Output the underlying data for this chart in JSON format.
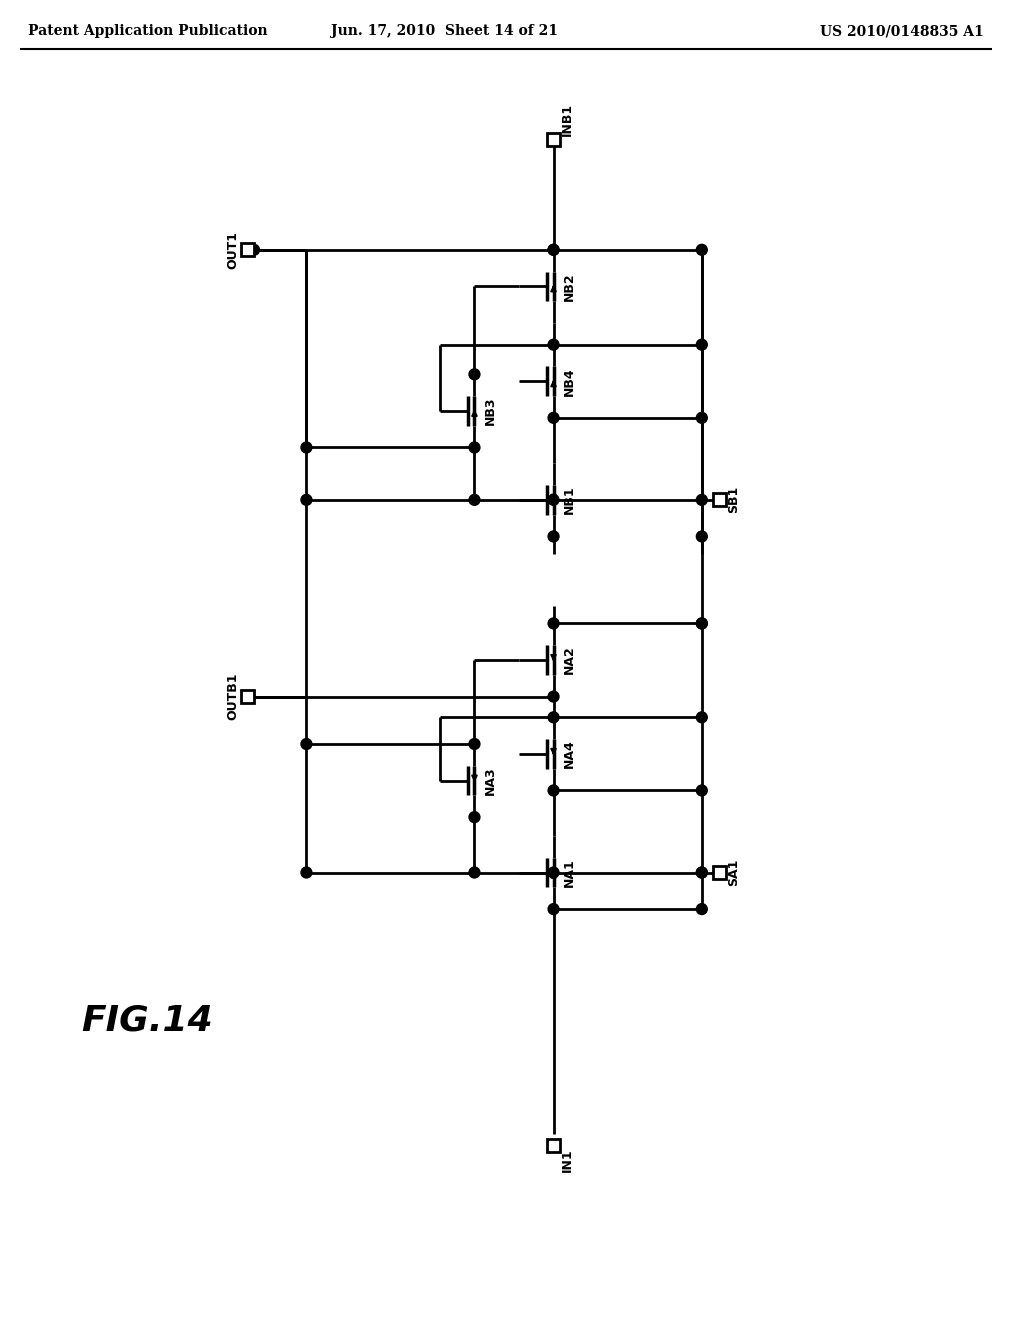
{
  "header_left": "Patent Application Publication",
  "header_center": "Jun. 17, 2010  Sheet 14 of 21",
  "header_right": "US 2010/0148835 A1",
  "fig_label": "FIG.14",
  "background_color": "#ffffff",
  "line_color": "#000000"
}
